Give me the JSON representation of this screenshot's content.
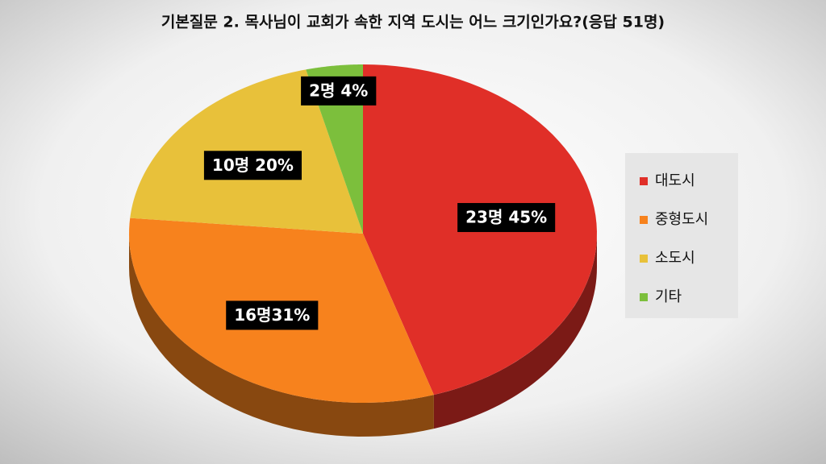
{
  "chart_data": {
    "type": "pie",
    "title": "기본질문 2. 목사님이 교회가 속한 지역 도시는 어느 크기인가요?(응답 51명)",
    "categories": [
      "대도시",
      "중형도시",
      "소도시",
      "기타"
    ],
    "values": [
      23,
      16,
      10,
      2
    ],
    "value_labels": [
      "23명 45%",
      "16명31%",
      "10명 20%",
      "2명 4%"
    ],
    "colors": [
      "#e02f28",
      "#f7821d",
      "#e8c13a",
      "#7cbf3c"
    ],
    "legend": "right"
  }
}
